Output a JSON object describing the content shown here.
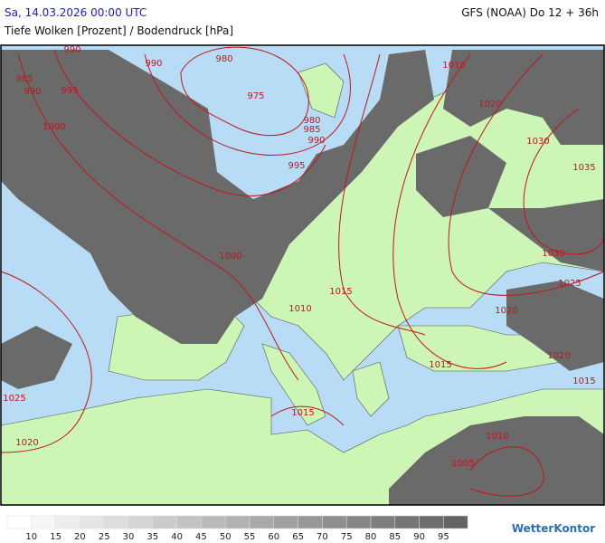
{
  "header": {
    "title": "Sa, 14.03.2026 00:00 UTC",
    "model": "GFS (NOAA) Do 12 + 36h",
    "subtitle": "Tiefe Wolken [Prozent] / Bodendruck [hPa]"
  },
  "map": {
    "isobar_labels": [
      "990",
      "990",
      "980",
      "1010",
      "985",
      "990",
      "995",
      "975",
      "1020",
      "980",
      "985",
      "990",
      "1000",
      "1030",
      "995",
      "1035",
      "1000",
      "1030",
      "1015",
      "1025",
      "1010",
      "1020",
      "1015",
      "1020",
      "1015",
      "1025",
      "1015",
      "1010",
      "1020",
      "1005"
    ]
  },
  "legend": {
    "ticks": [
      10,
      15,
      20,
      25,
      30,
      35,
      40,
      45,
      50,
      55,
      60,
      65,
      70,
      75,
      80,
      85,
      90,
      95
    ]
  },
  "brand": "WetterKontor"
}
